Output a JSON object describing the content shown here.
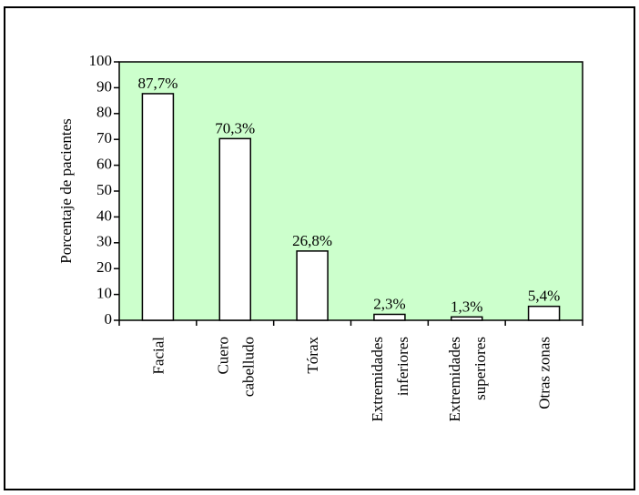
{
  "chart_data": {
    "type": "bar",
    "ylabel": "Porcentaje de pacientes",
    "categories": [
      "Facial",
      "Cuero\ncabelludo",
      "Tórax",
      "Extremidades\ninferiores",
      "Extremidades\nsuperiores",
      "Otras zonas"
    ],
    "values": [
      87.7,
      70.3,
      26.8,
      2.3,
      1.3,
      5.4
    ],
    "value_labels": [
      "87,7%",
      "70,3%",
      "26,8%",
      "2,3%",
      "1,3%",
      "5,4%"
    ],
    "color": "#ffffff",
    "background": "#ccffcc",
    "ylim": [
      0,
      100
    ],
    "yticks": [
      0,
      10,
      20,
      30,
      40,
      50,
      60,
      70,
      80,
      90,
      100
    ],
    "grid": false
  }
}
